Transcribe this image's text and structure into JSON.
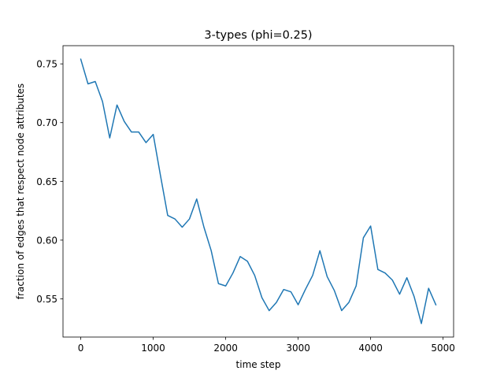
{
  "chart_data": {
    "type": "line",
    "title": "3-types (phi=0.25)",
    "xlabel": "time step",
    "ylabel": "fraction of edges that respect node attributes",
    "xlim": [
      -245,
      5145
    ],
    "ylim": [
      0.5175,
      0.7655
    ],
    "xticks": [
      0,
      1000,
      2000,
      3000,
      4000,
      5000
    ],
    "yticks": [
      0.55,
      0.6,
      0.65,
      0.7,
      0.75
    ],
    "xtick_labels": [
      "0",
      "1000",
      "2000",
      "3000",
      "4000",
      "5000"
    ],
    "ytick_labels": [
      "0.55",
      "0.60",
      "0.65",
      "0.70",
      "0.75"
    ],
    "grid": false,
    "series": [
      {
        "color": "#1f77b4",
        "x": [
          0,
          100,
          200,
          300,
          400,
          500,
          600,
          700,
          800,
          900,
          1000,
          1100,
          1200,
          1300,
          1400,
          1500,
          1600,
          1700,
          1800,
          1900,
          2000,
          2100,
          2200,
          2300,
          2400,
          2500,
          2600,
          2700,
          2800,
          2900,
          3000,
          3100,
          3200,
          3300,
          3400,
          3500,
          3600,
          3700,
          3800,
          3900,
          4000,
          4100,
          4200,
          4300,
          4400,
          4500,
          4600,
          4700,
          4800,
          4900
        ],
        "y": [
          0.754,
          0.733,
          0.735,
          0.718,
          0.687,
          0.715,
          0.701,
          0.692,
          0.692,
          0.683,
          0.69,
          0.655,
          0.621,
          0.618,
          0.611,
          0.618,
          0.635,
          0.611,
          0.591,
          0.563,
          0.561,
          0.572,
          0.586,
          0.582,
          0.57,
          0.551,
          0.54,
          0.547,
          0.558,
          0.556,
          0.545,
          0.558,
          0.57,
          0.591,
          0.569,
          0.557,
          0.54,
          0.547,
          0.561,
          0.602,
          0.612,
          0.575,
          0.572,
          0.566,
          0.554,
          0.568,
          0.552,
          0.529,
          0.559,
          0.545
        ]
      }
    ]
  }
}
